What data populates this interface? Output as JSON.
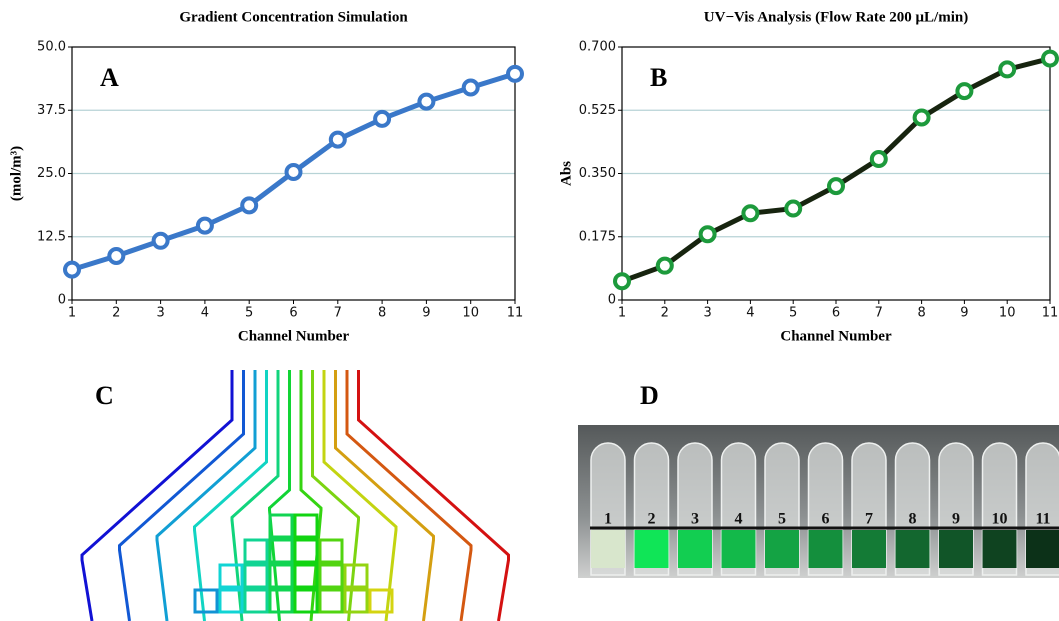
{
  "chart_data": [
    {
      "type": "line",
      "title": "Gradient Concentration Simulation",
      "annotation": "A",
      "x_label": "Channel Number",
      "y_label": "(mol/m³)",
      "x": [
        1,
        2,
        3,
        4,
        5,
        6,
        7,
        8,
        9,
        10,
        11
      ],
      "series": [
        {
          "color": "#3a78c9",
          "marker_color": "#3a78c9",
          "values": [
            6,
            8.7,
            11.7,
            14.7,
            18.7,
            25.3,
            31.7,
            35.8,
            39.2,
            42,
            44.7
          ]
        }
      ],
      "xlim": [
        1,
        11
      ],
      "xticks": [
        1,
        2,
        3,
        4,
        5,
        6,
        7,
        8,
        9,
        10,
        11
      ],
      "ylim": [
        0,
        50
      ],
      "yticks": [
        0,
        12.5,
        {
          "value": 25,
          "label": "25.0"
        },
        37.5,
        {
          "value": 50,
          "label": "50.0"
        }
      ],
      "grid": true
    },
    {
      "type": "line",
      "title": "UV−Vis Analysis (Flow Rate 200 μL/min)",
      "annotation": "B",
      "x_label": "Channel Number",
      "y_label": "Abs",
      "x": [
        1,
        2,
        3,
        4,
        5,
        6,
        7,
        8,
        9,
        10,
        11
      ],
      "series": [
        {
          "color": "#17240f",
          "marker_color": "#1d9a3c",
          "values": [
            0.052,
            0.095,
            0.182,
            0.24,
            0.253,
            0.315,
            0.39,
            0.505,
            0.578,
            0.638,
            0.668
          ]
        }
      ],
      "xlim": [
        1,
        11
      ],
      "xticks": [
        1,
        2,
        3,
        4,
        5,
        6,
        7,
        8,
        9,
        10,
        11
      ],
      "ylim": [
        0,
        0.7
      ],
      "yticks": [
        0,
        0.175,
        {
          "value": 0.35,
          "label": "0.350"
        },
        0.525,
        {
          "value": 0.7,
          "label": "0.700"
        }
      ],
      "grid": true
    }
  ],
  "panels": {
    "c_label": "C",
    "d_label": "D",
    "tubes": [
      "1",
      "2",
      "3",
      "4",
      "5",
      "6",
      "7",
      "8",
      "9",
      "10",
      "11"
    ]
  }
}
